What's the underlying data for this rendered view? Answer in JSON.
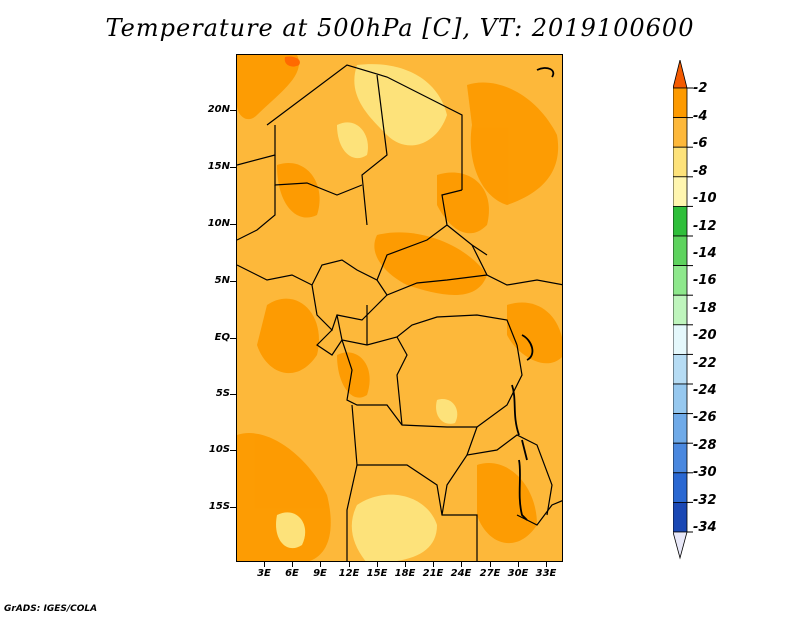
{
  "title": "Temperature at 500hPa [C], VT: 2019100600",
  "credit": "GrADS: IGES/COLA",
  "map": {
    "lat_labels": [
      "20N",
      "15N",
      "10N",
      "5N",
      "EQ",
      "5S",
      "10S",
      "15S"
    ],
    "lon_labels": [
      "3E",
      "6E",
      "9E",
      "12E",
      "15E",
      "18E",
      "21E",
      "24E",
      "27E",
      "30E",
      "33E"
    ],
    "shading_colors": {
      "-4_to_-2": "#ff6a00",
      "-6_to_-4": "#fd9a00",
      "-8_to_-6": "#fdb83a",
      "-10_to_-8": "#fde27a"
    }
  },
  "colorbar": {
    "labels": [
      "-2",
      "-4",
      "-6",
      "-8",
      "-10",
      "-12",
      "-14",
      "-16",
      "-18",
      "-20",
      "-22",
      "-24",
      "-26",
      "-28",
      "-30",
      "-32",
      "-34"
    ],
    "colors": [
      "#f45a00",
      "#fd9a00",
      "#fdb83a",
      "#fde27a",
      "#fff6b0",
      "#2fbf3a",
      "#5ed35e",
      "#8ee88c",
      "#bff5bd",
      "#e5f8fc",
      "#b6dcf4",
      "#96c8ef",
      "#6faae8",
      "#4a88df",
      "#2a68d2",
      "#1a48b5",
      "#0b1a80"
    ]
  }
}
